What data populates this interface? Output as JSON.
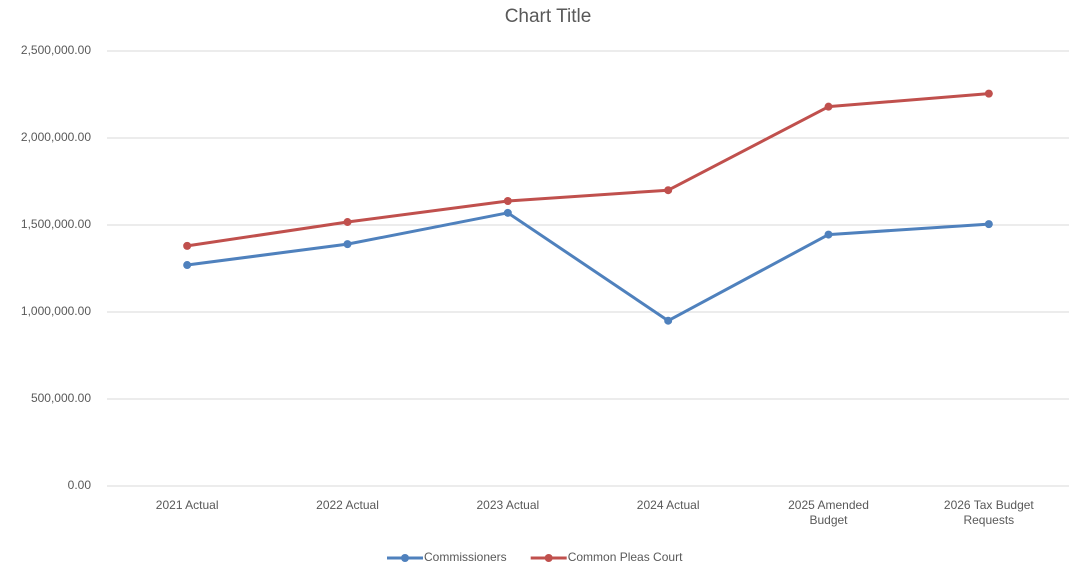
{
  "chart_data": {
    "type": "line",
    "title": "Chart Title",
    "categories": [
      "2021 Actual",
      "2022 Actual",
      "2023 Actual",
      "2024 Actual",
      "2025 Amended Budget",
      "2026 Tax Budget Requests"
    ],
    "series": [
      {
        "name": "Commissioners",
        "color": "#4f81bd",
        "values": [
          1270000,
          1390000,
          1570000,
          950000,
          1445000,
          1505000
        ]
      },
      {
        "name": "Common Pleas Court",
        "color": "#c0504d",
        "values": [
          1380000,
          1517000,
          1638000,
          1700000,
          2180000,
          2255000
        ]
      }
    ],
    "ylim": [
      0,
      2500000
    ],
    "yticks": [
      {
        "value": 0,
        "label": "0.00"
      },
      {
        "value": 500000,
        "label": "500,000.00"
      },
      {
        "value": 1000000,
        "label": "1,000,000.00"
      },
      {
        "value": 1500000,
        "label": "1,500,000.00"
      },
      {
        "value": 2000000,
        "label": "2,000,000.00"
      },
      {
        "value": 2500000,
        "label": "2,500,000.00"
      }
    ],
    "grid": true,
    "legend": "bottom"
  }
}
